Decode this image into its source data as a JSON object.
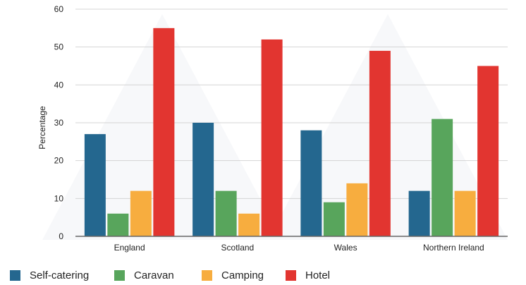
{
  "chart_data": {
    "type": "bar",
    "categories": [
      "England",
      "Scotland",
      "Wales",
      "Northern Ireland"
    ],
    "series": [
      {
        "name": "Self-catering",
        "color": "#24678f",
        "values": [
          27,
          30,
          28,
          12
        ]
      },
      {
        "name": "Caravan",
        "color": "#58a55c",
        "values": [
          6,
          12,
          9,
          31
        ]
      },
      {
        "name": "Camping",
        "color": "#f7ad3f",
        "values": [
          12,
          6,
          14,
          12
        ]
      },
      {
        "name": "Hotel",
        "color": "#e23530",
        "values": [
          55,
          52,
          49,
          45
        ]
      }
    ],
    "title": "",
    "xlabel": "",
    "ylabel": "Percentage",
    "ylim": [
      0,
      60
    ],
    "yticks": [
      0,
      10,
      20,
      30,
      40,
      50,
      60
    ],
    "grid": true,
    "legend": "bottom"
  }
}
